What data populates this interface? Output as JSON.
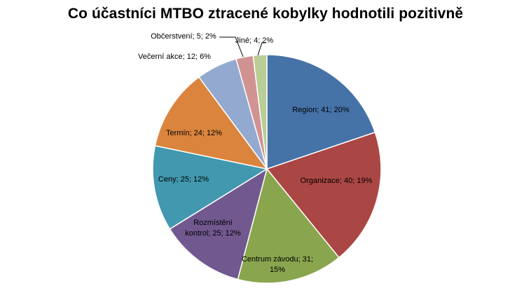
{
  "chart_data": {
    "type": "pie",
    "title": "Co účastníci MTBO ztracené kobylky hodnotili pozitivně",
    "slices": [
      {
        "label": "Region",
        "value": 41,
        "percent": "20%",
        "color": "#4572A7",
        "label_lines": [
          "Region; 41; 20%"
        ]
      },
      {
        "label": "Organizace",
        "value": 40,
        "percent": "19%",
        "color": "#AA4643",
        "label_lines": [
          "Organizace; 40; 19%"
        ]
      },
      {
        "label": "Centrum závodu",
        "value": 31,
        "percent": "15%",
        "color": "#89A54E",
        "label_lines": [
          "Centrum  závodu; 31;",
          "15%"
        ]
      },
      {
        "label": "Rozmístění kontrol",
        "value": 25,
        "percent": "12%",
        "color": "#71588F",
        "label_lines": [
          "Rozmístění",
          "kontrol; 25; 12%"
        ]
      },
      {
        "label": "Ceny",
        "value": 25,
        "percent": "12%",
        "color": "#4198AF",
        "label_lines": [
          "Ceny; 25; 12%"
        ]
      },
      {
        "label": "Termín",
        "value": 24,
        "percent": "12%",
        "color": "#DB843D",
        "label_lines": [
          "Termín; 24; 12%"
        ]
      },
      {
        "label": "Večerní akce",
        "value": 12,
        "percent": "6%",
        "color": "#93A9CF",
        "label_lines": [
          "Večerní akce; 12; 6%"
        ]
      },
      {
        "label": "Občerstvení",
        "value": 5,
        "percent": "2%",
        "color": "#D19392",
        "label_lines": [
          "Občerstvení; 5; 2%"
        ]
      },
      {
        "label": "Jiné",
        "value": 4,
        "percent": "2%",
        "color": "#B9CD96",
        "label_lines": [
          "Jiné; 4; 2%"
        ]
      }
    ]
  }
}
